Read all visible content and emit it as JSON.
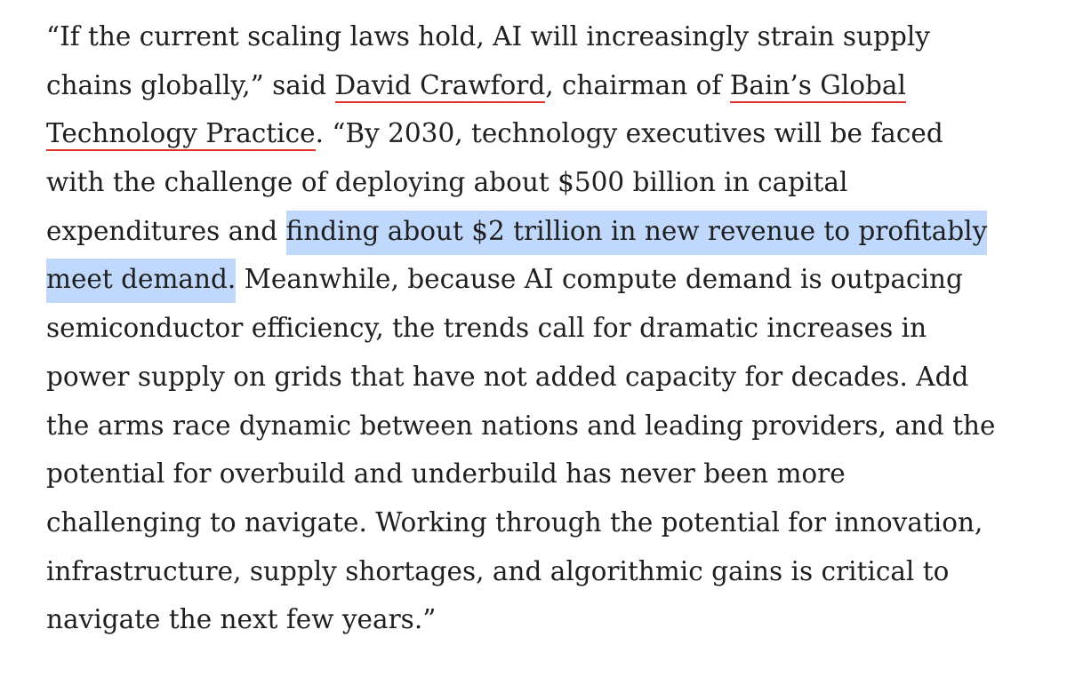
{
  "article": {
    "lines": {
      "l1": "“If the current scaling laws hold, AI will increasingly strain supply",
      "l2a": "chains globally,” said ",
      "l2b": ", chairman of ",
      "l3b": ". “By 2030, technology executives will be faced",
      "l4": "with the challenge of deploying about $500 billion in capital",
      "l5a": "expenditures and ",
      "l5b": "finding about $2 trillion in new revenue to profitably",
      "l6a": "meet demand.",
      "l6b": " Meanwhile, because AI compute demand is outpacing",
      "l7": "semiconductor efficiency, the trends call for dramatic increases in",
      "l8": "power supply on grids that have not added capacity for decades. Add",
      "l9": "the arms race dynamic between nations and leading providers, and the",
      "l10": "potential for overbuild and underbuild has never been more",
      "l11": "challenging to navigate. Working through the potential for innovation,",
      "l12": "infrastructure, supply shortages, and algorithmic gains is critical to",
      "l13": "navigate the next few years.”"
    },
    "links": {
      "person": "David Crawford",
      "practice_part1": "Bain’s Global",
      "practice_part2": "Technology Practice"
    },
    "colors": {
      "text": "#1f1f1f",
      "link_underline": "#e0322b",
      "selection_highlight": "#bfd8fb"
    }
  }
}
